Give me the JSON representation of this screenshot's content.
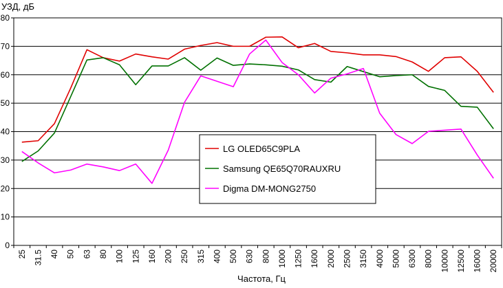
{
  "chart_data": {
    "type": "line",
    "ylabel": "УЗД, дБ",
    "xlabel": "Частота, Гц",
    "ylim": [
      0,
      80
    ],
    "yticks": [
      0,
      10,
      20,
      30,
      40,
      50,
      60,
      70,
      80
    ],
    "grid": "horizontal",
    "legend_position": "center",
    "categories": [
      "25",
      "31.5",
      "40",
      "50",
      "63",
      "80",
      "100",
      "125",
      "160",
      "200",
      "250",
      "315",
      "400",
      "500",
      "630",
      "800",
      "1000",
      "1250",
      "1600",
      "2000",
      "2500",
      "3150",
      "4000",
      "5000",
      "6300",
      "8000",
      "10000",
      "12500",
      "16000",
      "20000"
    ],
    "series": [
      {
        "name": "LG OLED65C9PLA",
        "color": "#e00000",
        "values": [
          36.3,
          36.8,
          42.8,
          55.3,
          68.8,
          66.0,
          64.8,
          67.3,
          66.3,
          65.5,
          69.0,
          70.3,
          71.3,
          70.0,
          70.0,
          73.2,
          73.3,
          69.5,
          71.0,
          68.2,
          67.7,
          67.0,
          67.0,
          66.4,
          64.5,
          61.2,
          66.0,
          66.3,
          61.2,
          53.8
        ]
      },
      {
        "name": "Samsung QE65Q70RAUXRU",
        "color": "#007000",
        "values": [
          29.5,
          33.2,
          39.5,
          52.3,
          65.2,
          66.0,
          63.5,
          56.5,
          63.1,
          63.1,
          66.0,
          61.6,
          65.9,
          63.3,
          63.8,
          63.5,
          63.0,
          61.7,
          58.3,
          57.4,
          62.9,
          61.1,
          59.3,
          59.7,
          60.0,
          55.9,
          54.5,
          48.9,
          48.6,
          41.0
        ]
      },
      {
        "name": "Digma DM-MONG2750",
        "color": "#ff00ff",
        "values": [
          33.0,
          29.0,
          25.5,
          26.5,
          28.6,
          27.6,
          26.3,
          28.6,
          21.8,
          33.5,
          50.3,
          59.6,
          57.7,
          55.8,
          67.3,
          72.2,
          64.3,
          60.0,
          53.6,
          58.8,
          60.3,
          62.2,
          46.5,
          39.0,
          35.8,
          40.1,
          40.5,
          40.9,
          31.8,
          23.6
        ]
      }
    ]
  }
}
